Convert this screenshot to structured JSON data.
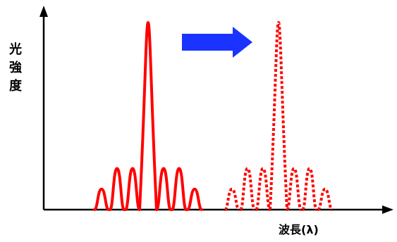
{
  "chart_data": {
    "type": "line",
    "title": "",
    "xlabel": "波長(λ)",
    "ylabel": "光強度",
    "grid": false,
    "ticks": false,
    "colors": {
      "axis": "#000000",
      "series": "#ff0000",
      "arrow": "#1a33ff"
    },
    "series": [
      {
        "style": "solid",
        "peak_lobes": [
          {
            "offset": -3,
            "relative_intensity": 0.11
          },
          {
            "offset": -2,
            "relative_intensity": 0.22
          },
          {
            "offset": -1,
            "relative_intensity": 0.22
          },
          {
            "offset": 0,
            "relative_intensity": 1.0
          },
          {
            "offset": 1,
            "relative_intensity": 0.22
          },
          {
            "offset": 2,
            "relative_intensity": 0.22
          },
          {
            "offset": 3,
            "relative_intensity": 0.11
          }
        ]
      },
      {
        "style": "dotted",
        "peak_lobes": [
          {
            "offset": -3,
            "relative_intensity": 0.11
          },
          {
            "offset": -2,
            "relative_intensity": 0.22
          },
          {
            "offset": -1,
            "relative_intensity": 0.22
          },
          {
            "offset": 0,
            "relative_intensity": 1.0
          },
          {
            "offset": 1,
            "relative_intensity": 0.22
          },
          {
            "offset": 2,
            "relative_intensity": 0.22
          },
          {
            "offset": 3,
            "relative_intensity": 0.11
          }
        ]
      }
    ],
    "annotation": {
      "type": "arrow",
      "direction": "right"
    }
  }
}
